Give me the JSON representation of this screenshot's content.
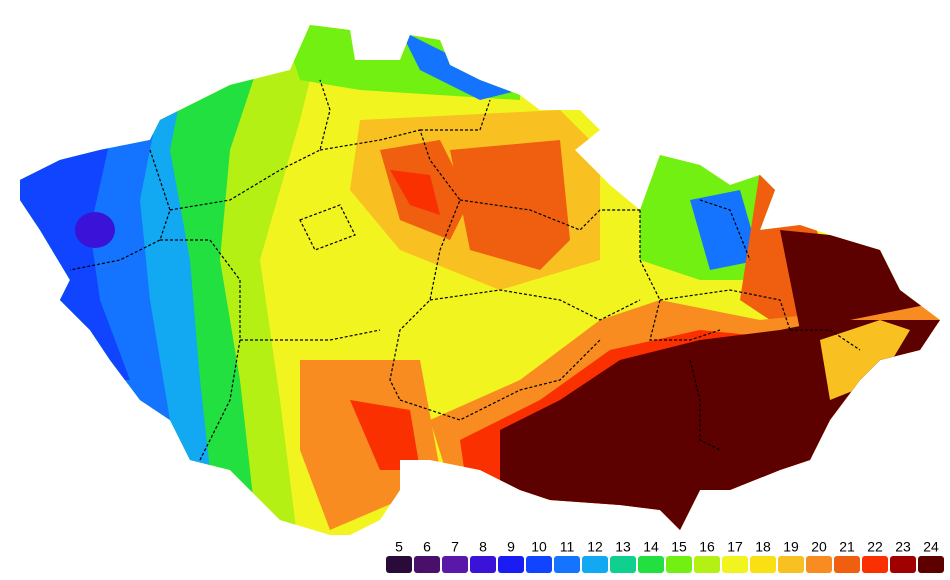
{
  "legend": {
    "items": [
      {
        "value": 5,
        "color": "#2a0a38"
      },
      {
        "value": 6,
        "color": "#4a0f6a"
      },
      {
        "value": 7,
        "color": "#5a18a8"
      },
      {
        "value": 8,
        "color": "#3a12d8"
      },
      {
        "value": 9,
        "color": "#1a1cf4"
      },
      {
        "value": 10,
        "color": "#1044ff"
      },
      {
        "value": 11,
        "color": "#1474ff"
      },
      {
        "value": 12,
        "color": "#12a8f2"
      },
      {
        "value": 13,
        "color": "#10d090"
      },
      {
        "value": 14,
        "color": "#22e040"
      },
      {
        "value": 15,
        "color": "#72f012"
      },
      {
        "value": 16,
        "color": "#b4f014"
      },
      {
        "value": 17,
        "color": "#f2f420"
      },
      {
        "value": 18,
        "color": "#fae012"
      },
      {
        "value": 19,
        "color": "#f8c020"
      },
      {
        "value": 20,
        "color": "#f88c20"
      },
      {
        "value": 21,
        "color": "#f05e10"
      },
      {
        "value": 22,
        "color": "#fa3000"
      },
      {
        "value": 23,
        "color": "#a00000"
      },
      {
        "value": 24,
        "color": "#5c0000"
      }
    ]
  }
}
